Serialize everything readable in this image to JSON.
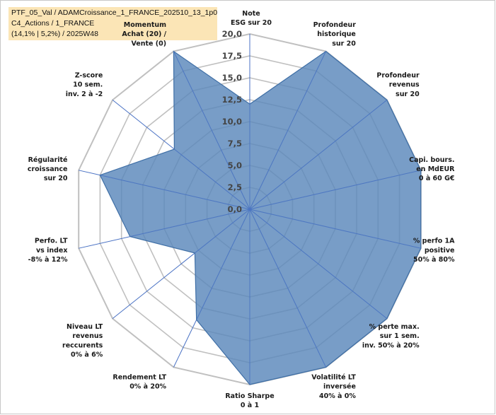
{
  "header": {
    "line1": "PTF_05_Val / ADAMCroissance_1_FRANCE_202510_13_1p0",
    "line2": "C4_Actions / 1_FRANCE",
    "line3": "(14,1% | 5,2%) / 2025W48"
  },
  "colors": {
    "fill": "#5a87bb",
    "stroke": "#3f6fa6",
    "grid": "#c0c0c0",
    "spoke": "#4a72c4",
    "highlight": "#fbe5b6"
  },
  "chart_data": {
    "type": "radar",
    "title": "",
    "rmin": 0,
    "rmax": 20,
    "tick_step": 2.5,
    "ticks": [
      "0,0",
      "2,5",
      "5,0",
      "7,5",
      "10,0",
      "12,5",
      "15,0",
      "17,5",
      "20,0"
    ],
    "axes": [
      {
        "lines": [
          "Note",
          "ESG sur 20"
        ],
        "highlight": false
      },
      {
        "lines": [
          "Profondeur",
          "historique",
          "sur 20"
        ],
        "highlight": false
      },
      {
        "lines": [
          "Profondeur",
          "revenus",
          "sur 20"
        ],
        "highlight": false
      },
      {
        "lines": [
          "Capi. bours.",
          "en MdEUR",
          "0 à 60 G€"
        ],
        "highlight": false
      },
      {
        "lines": [
          "% perfo 1A",
          "positive",
          "50% à 80%"
        ],
        "highlight": false
      },
      {
        "lines": [
          "% perte max.",
          "sur 1 sem.",
          "inv. 50% à 20%"
        ],
        "highlight": false
      },
      {
        "lines": [
          "Volatilité LT",
          "inversée",
          "40% à 0%"
        ],
        "highlight": false
      },
      {
        "lines": [
          "Ratio Sharpe",
          "0 à 1"
        ],
        "highlight": false
      },
      {
        "lines": [
          "Rendement LT",
          "0% à 20%"
        ],
        "highlight": false
      },
      {
        "lines": [
          "Niveau LT",
          "revenus",
          "reccurents",
          "0% à 6%"
        ],
        "highlight": false
      },
      {
        "lines": [
          "Perfo. LT",
          "vs index",
          "-8% à 12%"
        ],
        "highlight": false
      },
      {
        "lines": [
          "Régularité",
          "croissance",
          "sur 20"
        ],
        "highlight": false
      },
      {
        "lines": [
          "Z-score",
          "10 sem.",
          "inv. 2 à -2"
        ],
        "highlight": false
      },
      {
        "lines": [
          "Momentum",
          "Achat (20) /",
          "Vente (0)"
        ],
        "highlight": true
      }
    ],
    "series": [
      {
        "name": "ADAMCroissance_1_FRANCE",
        "values": [
          12.0,
          20.0,
          20.0,
          20.0,
          20.0,
          20.0,
          20.0,
          20.0,
          14.0,
          8.0,
          14.0,
          17.5,
          11.0,
          20.0
        ]
      }
    ]
  }
}
